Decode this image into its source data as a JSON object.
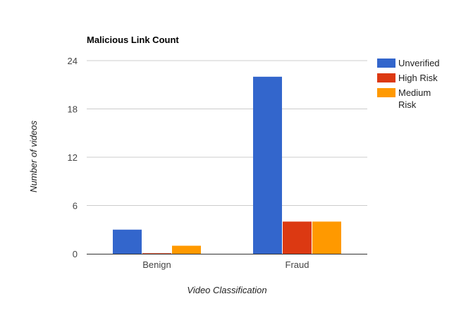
{
  "chart_data": {
    "type": "bar",
    "title": "Malicious Link Count",
    "xlabel": "Video Classification",
    "ylabel": "Number of videos",
    "categories": [
      "Benign",
      "Fraud"
    ],
    "series": [
      {
        "name": "Unverified",
        "values": [
          3,
          22
        ],
        "color": "#3366cc"
      },
      {
        "name": "High Risk",
        "values": [
          0,
          4
        ],
        "color": "#dc3912"
      },
      {
        "name": "Medium Risk",
        "values": [
          1,
          4
        ],
        "color": "#ff9900"
      }
    ],
    "ylim": [
      0,
      24
    ],
    "yticks": [
      0,
      6,
      12,
      18,
      24
    ],
    "grid": true,
    "legend_position": "right"
  }
}
